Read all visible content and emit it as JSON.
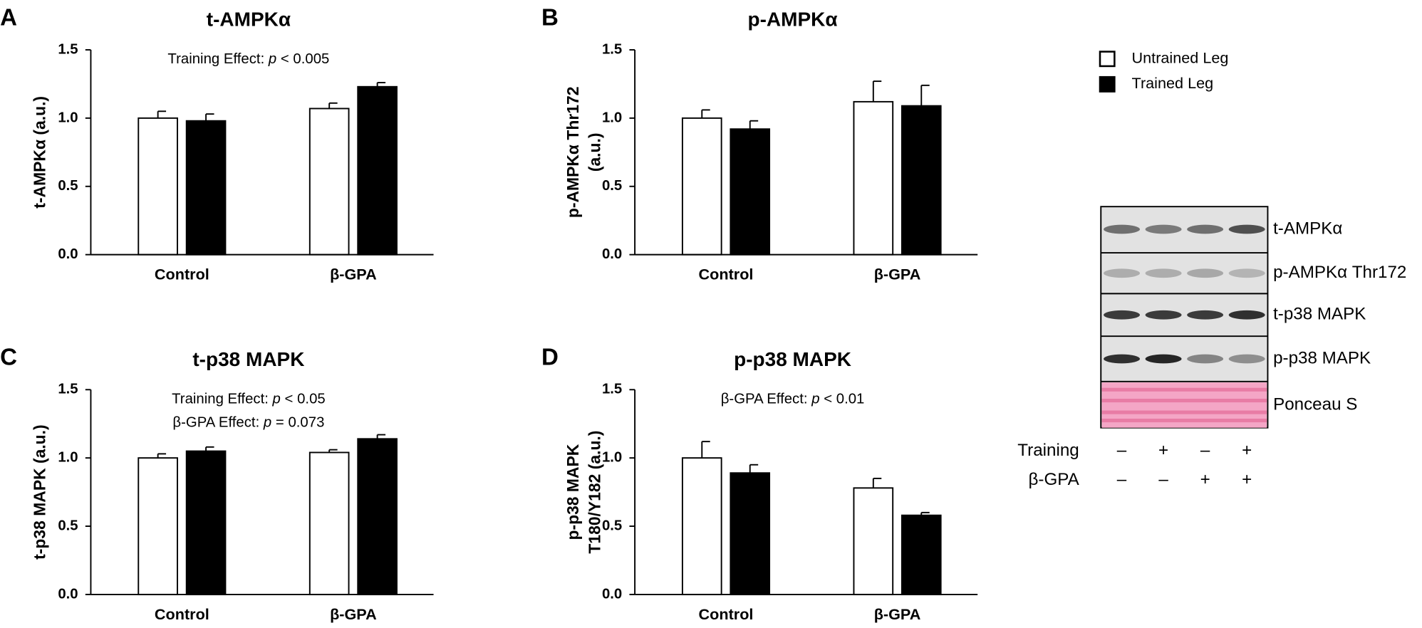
{
  "chart_data": [
    {
      "type": "bar",
      "panel": "A",
      "title": "t-AMPKα",
      "ylabel": [
        "t-AMPKα (a.u.)"
      ],
      "annotations": [
        [
          "Training Effect: ",
          "p",
          " < 0.005"
        ]
      ],
      "categories": [
        "Control",
        "β-GPA"
      ],
      "series": [
        {
          "color": "#ffffff",
          "values": [
            1.0,
            1.07
          ],
          "errors": [
            0.05,
            0.04
          ]
        },
        {
          "color": "#000000",
          "values": [
            0.98,
            1.23
          ],
          "errors": [
            0.05,
            0.03
          ]
        }
      ],
      "ylim": [
        0,
        1.5
      ],
      "yticks": [
        {
          "value": 0,
          "label": "0.0"
        },
        0.5,
        {
          "value": 1,
          "label": "1.0"
        },
        1.5
      ]
    },
    {
      "type": "bar",
      "panel": "B",
      "title": "p-AMPKα",
      "ylabel": [
        "p-AMPKα Thr172",
        "(a.u.)"
      ],
      "annotations": [],
      "categories": [
        "Control",
        "β-GPA"
      ],
      "series": [
        {
          "color": "#ffffff",
          "values": [
            1.0,
            1.12
          ],
          "errors": [
            0.06,
            0.15
          ]
        },
        {
          "color": "#000000",
          "values": [
            0.92,
            1.09
          ],
          "errors": [
            0.06,
            0.15
          ]
        }
      ],
      "ylim": [
        0,
        1.5
      ],
      "yticks": [
        {
          "value": 0,
          "label": "0.0"
        },
        0.5,
        {
          "value": 1,
          "label": "1.0"
        },
        1.5
      ]
    },
    {
      "type": "bar",
      "panel": "C",
      "title": "t-p38 MAPK",
      "ylabel": [
        "t-p38 MAPK (a.u.)"
      ],
      "annotations": [
        [
          "Training Effect: ",
          "p",
          " < 0.05"
        ],
        [
          "β-GPA Effect: ",
          "p",
          " = 0.073"
        ]
      ],
      "categories": [
        "Control",
        "β-GPA"
      ],
      "series": [
        {
          "color": "#ffffff",
          "values": [
            1.0,
            1.04
          ],
          "errors": [
            0.03,
            0.02
          ]
        },
        {
          "color": "#000000",
          "values": [
            1.05,
            1.14
          ],
          "errors": [
            0.03,
            0.03
          ]
        }
      ],
      "ylim": [
        0,
        1.5
      ],
      "yticks": [
        {
          "value": 0,
          "label": "0.0"
        },
        0.5,
        {
          "value": 1,
          "label": "1.0"
        },
        1.5
      ]
    },
    {
      "type": "bar",
      "panel": "D",
      "title": "p-p38 MAPK",
      "ylabel": [
        "p-p38 MAPK",
        "T180/Y182 (a.u.)"
      ],
      "annotations": [
        [
          "β-GPA Effect: ",
          "p",
          " < 0.01"
        ]
      ],
      "categories": [
        "Control",
        "β-GPA"
      ],
      "series": [
        {
          "color": "#ffffff",
          "values": [
            1.0,
            0.78
          ],
          "errors": [
            0.12,
            0.07
          ]
        },
        {
          "color": "#000000",
          "values": [
            0.89,
            0.58
          ],
          "errors": [
            0.06,
            0.02
          ]
        }
      ],
      "ylim": [
        0,
        1.5
      ],
      "yticks": [
        {
          "value": 0,
          "label": "0.0"
        },
        0.5,
        {
          "value": 1,
          "label": "1.0"
        },
        1.5
      ]
    }
  ],
  "legend": [
    {
      "name": "Untrained Leg",
      "color": "#ffffff"
    },
    {
      "name": "Trained Leg",
      "color": "#000000"
    }
  ],
  "blot": {
    "rows": [
      "t-AMPKα",
      "p-AMPKα Thr172",
      "t-p38 MAPK",
      "p-p38 MAPK",
      "Ponceau S"
    ],
    "conditions": [
      {
        "label": "Training",
        "signs": [
          "–",
          "+",
          "–",
          "+"
        ]
      },
      {
        "label": "β-GPA",
        "signs": [
          "–",
          "–",
          "+",
          "+"
        ]
      }
    ]
  }
}
